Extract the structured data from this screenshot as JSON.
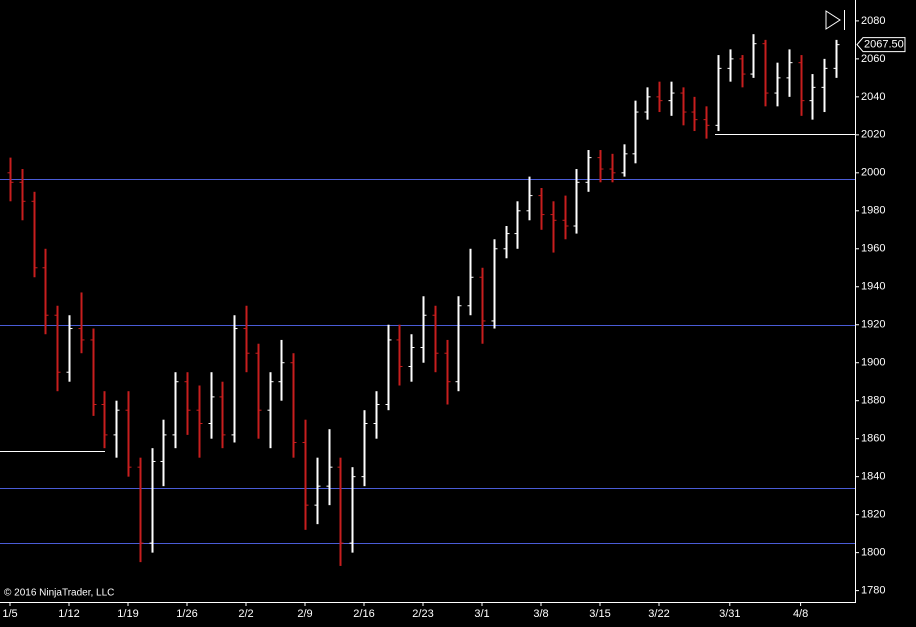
{
  "chart_data": {
    "type": "ohlc",
    "categories": [
      "1/5",
      null,
      null,
      null,
      null,
      "1/12",
      null,
      null,
      null,
      null,
      "1/19",
      null,
      null,
      null,
      null,
      "1/26",
      null,
      null,
      null,
      null,
      "2/2",
      null,
      null,
      null,
      null,
      "2/9",
      null,
      null,
      null,
      null,
      "2/16",
      null,
      null,
      null,
      null,
      "2/23",
      null,
      null,
      null,
      null,
      "3/1",
      null,
      null,
      null,
      null,
      "3/8",
      null,
      null,
      null,
      null,
      "3/15",
      null,
      null,
      null,
      null,
      "3/22",
      null,
      null,
      null,
      null,
      null,
      "3/31",
      null,
      null,
      null,
      null,
      null,
      "4/8",
      null,
      null,
      null
    ],
    "open": [
      2000,
      1995,
      1985,
      1950,
      1925,
      1895,
      1918,
      1912,
      1878,
      1862,
      1875,
      1845,
      1805,
      1848,
      1862,
      1890,
      1875,
      1868,
      1882,
      1862,
      1918,
      1905,
      1875,
      1890,
      1900,
      1858,
      1825,
      1835,
      1845,
      1805,
      1840,
      1868,
      1878,
      1912,
      1898,
      1908,
      1925,
      1905,
      1890,
      1930,
      1945,
      1922,
      1960,
      1968,
      1980,
      1988,
      1978,
      1975,
      1972,
      1995,
      2008,
      2002,
      2000,
      2010,
      2032,
      2040,
      2038,
      2042,
      2032,
      2028,
      2025,
      2055,
      2060,
      2052,
      2068,
      2042,
      2050,
      2058,
      2038,
      2045,
      2055
    ],
    "high": [
      2008,
      2002,
      1990,
      1960,
      1930,
      1925,
      1937,
      1918,
      1885,
      1880,
      1885,
      1850,
      1855,
      1870,
      1895,
      1895,
      1888,
      1895,
      1890,
      1925,
      1930,
      1910,
      1895,
      1912,
      1905,
      1870,
      1850,
      1865,
      1850,
      1845,
      1875,
      1885,
      1920,
      1920,
      1915,
      1935,
      1930,
      1912,
      1935,
      1960,
      1950,
      1965,
      1972,
      1985,
      1998,
      1992,
      1985,
      1988,
      2002,
      2012,
      2012,
      2010,
      2015,
      2038,
      2045,
      2048,
      2048,
      2045,
      2040,
      2035,
      2062,
      2065,
      2062,
      2073,
      2070,
      2058,
      2065,
      2062,
      2052,
      2060,
      2070
    ],
    "low": [
      1985,
      1975,
      1945,
      1915,
      1885,
      1890,
      1905,
      1872,
      1855,
      1850,
      1840,
      1795,
      1800,
      1835,
      1855,
      1862,
      1850,
      1860,
      1855,
      1858,
      1895,
      1860,
      1855,
      1880,
      1850,
      1812,
      1815,
      1825,
      1793,
      1800,
      1835,
      1860,
      1875,
      1888,
      1890,
      1900,
      1895,
      1878,
      1885,
      1925,
      1910,
      1918,
      1955,
      1960,
      1975,
      1970,
      1958,
      1965,
      1968,
      1990,
      1995,
      1995,
      1998,
      2005,
      2028,
      2032,
      2030,
      2025,
      2022,
      2018,
      2022,
      2048,
      2045,
      2050,
      2035,
      2035,
      2040,
      2030,
      2028,
      2032,
      2050
    ],
    "close": [
      1995,
      1985,
      1950,
      1925,
      1895,
      1918,
      1912,
      1878,
      1862,
      1875,
      1845,
      1805,
      1848,
      1862,
      1890,
      1875,
      1868,
      1882,
      1862,
      1918,
      1905,
      1875,
      1890,
      1900,
      1858,
      1825,
      1835,
      1845,
      1805,
      1840,
      1868,
      1878,
      1912,
      1898,
      1908,
      1925,
      1905,
      1890,
      1930,
      1945,
      1922,
      1960,
      1968,
      1980,
      1988,
      1978,
      1975,
      1972,
      1995,
      2008,
      2002,
      2000,
      2010,
      2032,
      2040,
      2038,
      2042,
      2032,
      2028,
      2025,
      2055,
      2060,
      2052,
      2068,
      2042,
      2050,
      2058,
      2038,
      2045,
      2055,
      2067.5
    ],
    "up_color": "#ffffff",
    "down_color": "#c81e1e",
    "ylim": [
      1774,
      2091
    ],
    "yticks": [
      1780,
      1800,
      1820,
      1840,
      1860,
      1880,
      1900,
      1920,
      1940,
      1960,
      1980,
      2000,
      2020,
      2040,
      2060,
      2080
    ],
    "hlines": [
      {
        "value": 1997,
        "color": "#4a5cd6"
      },
      {
        "value": 1920,
        "color": "#4a5cd6"
      },
      {
        "value": 1834,
        "color": "#4a5cd6"
      },
      {
        "value": 1805,
        "color": "#4a5cd6"
      },
      {
        "value": 1853.5,
        "color": "#ffffff"
      },
      {
        "value": 2020.5,
        "color": "#ffffff"
      }
    ],
    "last_price": {
      "value": 2067.5,
      "label": "2067.50"
    },
    "copyright": "© 2016 NinjaTrader, LLC"
  }
}
